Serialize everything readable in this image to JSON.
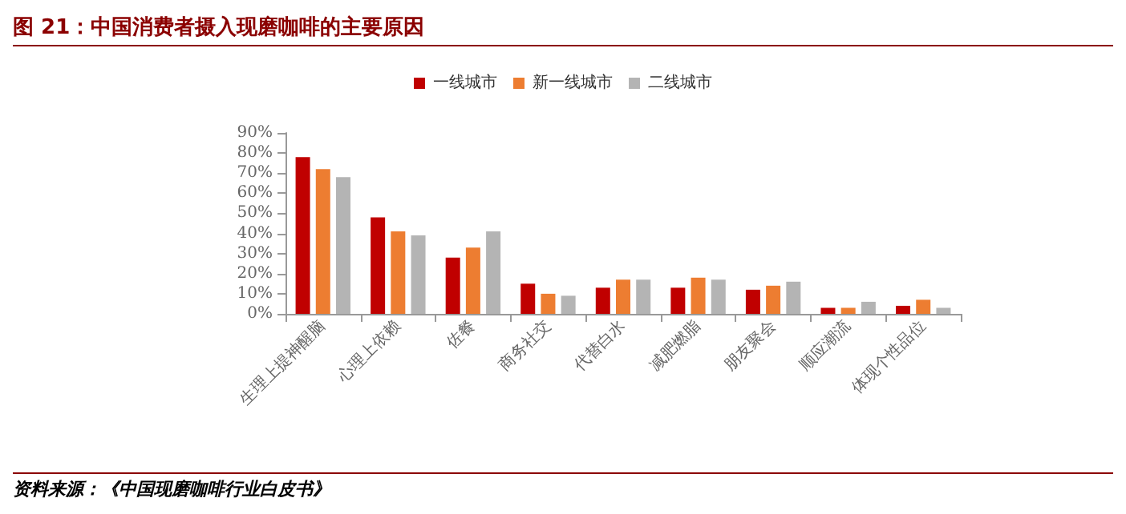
{
  "chart_data": {
    "type": "bar",
    "title": "图 21：中国消费者摄入现磨咖啡的主要原因",
    "annotations": [
      "资料来源：《中国现磨咖啡行业白皮书》"
    ],
    "categories": [
      "生理上提神醒脑",
      "心理上依赖",
      "佐餐",
      "商务社交",
      "代替白水",
      "减肥燃脂",
      "朋友聚会",
      "顺应潮流",
      "体现个性品位"
    ],
    "series": [
      {
        "name": "一线城市",
        "color": "#c00000",
        "values": [
          78,
          48,
          28,
          15,
          13,
          13,
          12,
          3,
          4
        ]
      },
      {
        "name": "新一线城市",
        "color": "#ed7d31",
        "values": [
          72,
          41,
          33,
          10,
          17,
          18,
          14,
          3,
          7
        ]
      },
      {
        "name": "二线城市",
        "color": "#b4b4b4",
        "values": [
          68,
          39,
          41,
          9,
          17,
          17,
          16,
          6,
          3
        ]
      }
    ],
    "ylim": [
      0,
      90
    ],
    "yticks": [
      {
        "value": 0,
        "label": "0%"
      },
      {
        "value": 10,
        "label": "10%"
      },
      {
        "value": 20,
        "label": "20%"
      },
      {
        "value": 30,
        "label": "30%"
      },
      {
        "value": 40,
        "label": "40%"
      },
      {
        "value": 50,
        "label": "50%"
      },
      {
        "value": 60,
        "label": "60%"
      },
      {
        "value": 70,
        "label": "70%"
      },
      {
        "value": 80,
        "label": "80%"
      },
      {
        "value": 90,
        "label": "90%"
      }
    ],
    "grid": false,
    "legend": "top"
  }
}
